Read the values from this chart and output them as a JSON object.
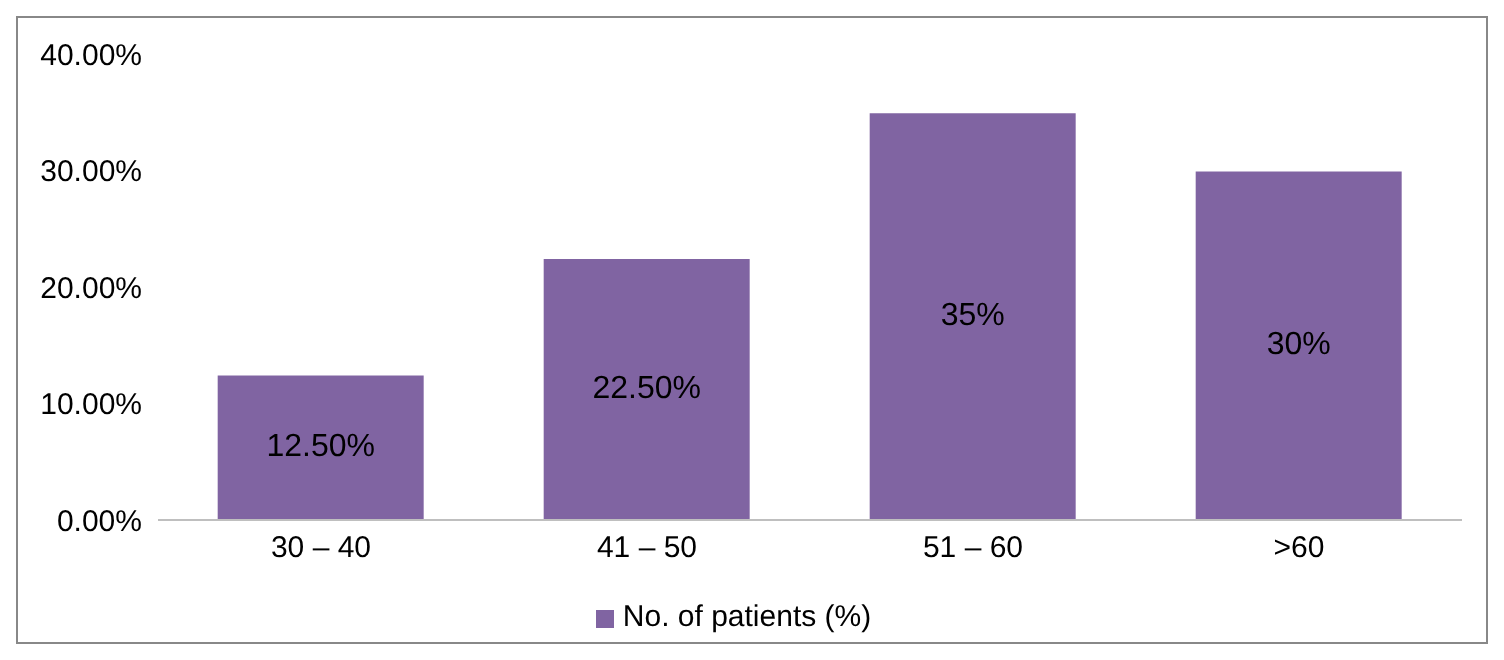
{
  "chart_data": {
    "type": "bar",
    "categories": [
      "30 – 40",
      "41 – 50",
      "51 – 60",
      ">60"
    ],
    "series": [
      {
        "name": "No. of patients (%)",
        "color": "#8064a2",
        "values": [
          12.5,
          22.5,
          35,
          30
        ],
        "value_labels": [
          "12.50%",
          "22.50%",
          "35%",
          "30%"
        ]
      }
    ],
    "ylim": [
      0,
      40
    ],
    "yticks": [
      {
        "value": 0,
        "label": "0.00%"
      },
      {
        "value": 10,
        "label": "10.00%"
      },
      {
        "value": 20,
        "label": "20.00%"
      },
      {
        "value": 30,
        "label": "30.00%"
      },
      {
        "value": 40,
        "label": "40.00%"
      }
    ],
    "grid": false,
    "legend": "bottom"
  }
}
